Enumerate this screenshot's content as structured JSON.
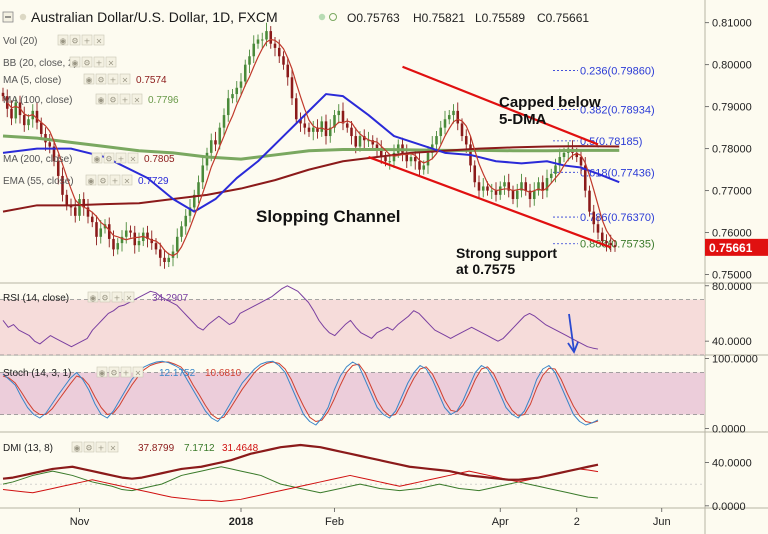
{
  "header": {
    "symbol": "Australian Dollar/U.S. Dollar, 1D, FXCM",
    "open": "O0.75763",
    "high": "H0.75821",
    "low": "L0.75589",
    "close": "C0.75661"
  },
  "indicators": [
    {
      "label": "Vol (20)",
      "value": "",
      "color": "#999999"
    },
    {
      "label": "BB (20, close, 2)",
      "value": "",
      "color": "#999999"
    },
    {
      "label": "MA (5, close)",
      "value": "0.7574",
      "color": "#8b1a1a"
    },
    {
      "label": "MA (100, close)",
      "value": "0.7796",
      "color": "#6a9a4a"
    },
    {
      "label": "MA (200, close)",
      "value": "0.7805",
      "color": "#8b1a1a"
    },
    {
      "label": "EMA (55, close)",
      "value": "0.7729",
      "color": "#2a2ad8"
    }
  ],
  "annotations": {
    "channel": "Slopping Channel",
    "capped": [
      "Capped below",
      "5-DMA"
    ],
    "support": [
      "Strong support",
      "at 0.7575"
    ]
  },
  "colors": {
    "bg": "#fdfbf0",
    "up": "#4a8a3a",
    "down": "#8b1a1a",
    "ema": "#2a2ad8",
    "ma100": "#7aa860",
    "ma200": "#8b1a1a",
    "ma5": "#c0392b",
    "channel": "#e01010",
    "fib": "#2b3bd6",
    "price_tag": "#e01010",
    "rsi": "#7a3fa0",
    "rsi_band": "#f5d6d6",
    "stoch_k": "#3a86c8",
    "stoch_d": "#d04030",
    "stoch_band": "#e9c4d6",
    "dmi_adx": "#8b1a1a",
    "dmi_plus": "#3a7a2a",
    "dmi_minus": "#d01010"
  },
  "chart_data": {
    "type": "line",
    "title": "Australian Dollar/U.S. Dollar, 1D, FXCM",
    "price_axis": {
      "ylim": [
        0.748,
        0.8135
      ],
      "ticks": [
        "0.81000",
        "0.80000",
        "0.79000",
        "0.78000",
        "0.77000",
        "0.76000",
        "0.75000"
      ],
      "tick_values": [
        0.81,
        0.8,
        0.79,
        0.78,
        0.77,
        0.76,
        0.75
      ],
      "last_price": "0.75661",
      "last_value": 0.75661
    },
    "x_axis": {
      "labels": [
        "Nov",
        "2018",
        "Feb",
        "Apr",
        "2",
        "Jun"
      ],
      "label_index": [
        18,
        56,
        78,
        117,
        135,
        155
      ],
      "range": [
        0,
        164
      ]
    },
    "candles_close": [
      0.7925,
      0.7895,
      0.7872,
      0.791,
      0.788,
      0.7856,
      0.787,
      0.789,
      0.7862,
      0.7835,
      0.7815,
      0.7805,
      0.777,
      0.7735,
      0.769,
      0.7665,
      0.766,
      0.764,
      0.768,
      0.766,
      0.7638,
      0.7625,
      0.759,
      0.761,
      0.762,
      0.7585,
      0.756,
      0.7575,
      0.759,
      0.7605,
      0.76,
      0.757,
      0.758,
      0.76,
      0.7585,
      0.7575,
      0.756,
      0.754,
      0.753,
      0.754,
      0.7555,
      0.759,
      0.7615,
      0.764,
      0.766,
      0.769,
      0.772,
      0.776,
      0.779,
      0.782,
      0.781,
      0.785,
      0.788,
      0.792,
      0.793,
      0.7945,
      0.796,
      0.8,
      0.802,
      0.805,
      0.806,
      0.806,
      0.808,
      0.805,
      0.804,
      0.802,
      0.8,
      0.797,
      0.792,
      0.787,
      0.786,
      0.785,
      0.784,
      0.785,
      0.784,
      0.7865,
      0.783,
      0.785,
      0.788,
      0.789,
      0.786,
      0.785,
      0.783,
      0.7805,
      0.783,
      0.782,
      0.782,
      0.781,
      0.78,
      0.778,
      0.777,
      0.777,
      0.779,
      0.781,
      0.779,
      0.777,
      0.778,
      0.777,
      0.775,
      0.776,
      0.779,
      0.781,
      0.783,
      0.785,
      0.787,
      0.788,
      0.789,
      0.786,
      0.783,
      0.781,
      0.776,
      0.772,
      0.77,
      0.771,
      0.77,
      0.77,
      0.769,
      0.771,
      0.772,
      0.77,
      0.768,
      0.77,
      0.772,
      0.77,
      0.768,
      0.77,
      0.772,
      0.77,
      0.773,
      0.774,
      0.776,
      0.778,
      0.779,
      0.78,
      0.779,
      0.778,
      0.776,
      0.77,
      0.765,
      0.762,
      0.76,
      0.758,
      0.7575,
      0.757,
      0.7566
    ],
    "ema55": [
      0.779,
      0.78,
      0.78,
      0.778,
      0.773,
      0.768,
      0.765,
      0.768,
      0.773,
      0.777,
      0.783,
      0.789,
      0.793,
      0.7925,
      0.788,
      0.783,
      0.781,
      0.779,
      0.7785,
      0.777,
      0.7765,
      0.777,
      0.776,
      0.7755,
      0.774,
      0.772
    ],
    "ema55_index": [
      0,
      8,
      16,
      24,
      34,
      40,
      45,
      50,
      55,
      60,
      66,
      72,
      76,
      80,
      86,
      92,
      98,
      104,
      110,
      116,
      122,
      128,
      132,
      136,
      140,
      145
    ],
    "ma100": [
      0.783,
      0.7825,
      0.7815,
      0.7805,
      0.7795,
      0.779,
      0.778,
      0.7775,
      0.7785,
      0.7795,
      0.7798,
      0.7798,
      0.7797,
      0.7796,
      0.7796,
      0.7795,
      0.7795,
      0.7796,
      0.7796
    ],
    "ma100_index": [
      0,
      8,
      16,
      24,
      32,
      40,
      48,
      56,
      64,
      72,
      80,
      88,
      96,
      104,
      112,
      120,
      128,
      136,
      145
    ],
    "ma200": [
      0.765,
      0.7665,
      0.7665,
      0.7668,
      0.767,
      0.768,
      0.769,
      0.7705,
      0.7725,
      0.775,
      0.777,
      0.778,
      0.779,
      0.7795,
      0.78,
      0.7803,
      0.7805,
      0.7806,
      0.7805
    ],
    "ma200_index": [
      0,
      8,
      16,
      24,
      32,
      40,
      48,
      56,
      64,
      72,
      80,
      88,
      96,
      104,
      112,
      120,
      128,
      136,
      145
    ],
    "channel_upper": [
      [
        94,
        0.7995
      ],
      [
        140,
        0.781
      ]
    ],
    "channel_lower": [
      [
        86,
        0.778
      ],
      [
        143,
        0.7565
      ]
    ],
    "fib_levels": [
      {
        "label": "0.236(0.79860)",
        "value": 0.7986
      },
      {
        "label": "0.382(0.78934)",
        "value": 0.78934
      },
      {
        "label": "0.5(0.78185)",
        "value": 0.78185
      },
      {
        "label": "0.618(0.77436)",
        "value": 0.77436
      },
      {
        "label": "0.786(0.76370)",
        "value": 0.7637
      },
      {
        "label": "0.886(0.75735)",
        "value": 0.75735
      }
    ],
    "rsi": {
      "label": "RSI (14, close)",
      "value_label": "34.2907",
      "ylim": [
        30,
        82
      ],
      "ticks": [
        "80.0000",
        "40.0000"
      ],
      "tick_values": [
        80,
        40
      ],
      "band": [
        30,
        70
      ],
      "values": [
        55,
        50,
        52,
        48,
        46,
        44,
        40,
        38,
        41,
        44,
        42,
        40,
        38,
        36,
        38,
        40,
        42,
        48,
        52,
        56,
        60,
        62,
        65,
        66,
        68,
        70,
        72,
        74,
        76,
        75,
        72,
        70,
        68,
        66,
        62,
        58,
        54,
        50,
        48,
        52,
        55,
        58,
        55,
        52,
        54,
        60,
        62,
        64,
        66,
        68,
        70,
        72,
        75,
        78,
        80,
        78,
        76,
        72,
        68,
        62,
        55,
        50,
        46,
        44,
        48,
        52,
        55,
        50,
        46,
        44,
        42,
        46,
        48,
        50,
        48,
        52,
        55,
        58,
        62,
        60,
        56,
        52,
        48,
        46,
        44,
        42,
        44,
        46,
        48,
        50,
        48,
        46,
        44,
        42,
        40,
        42,
        46,
        50,
        54,
        58,
        60,
        58,
        55,
        52,
        50,
        48,
        46,
        44,
        42,
        40,
        38,
        36,
        35,
        34.29
      ]
    },
    "stoch": {
      "label": "Stoch (14, 3, 1)",
      "k_label": "12.1752",
      "d_label": "10.6810",
      "ylim": [
        -5,
        105
      ],
      "ticks": [
        "100.0000",
        "0.0000"
      ],
      "tick_values": [
        100,
        0
      ],
      "band": [
        20,
        80
      ],
      "k": [
        78,
        70,
        62,
        45,
        30,
        20,
        15,
        22,
        35,
        48,
        60,
        72,
        80,
        70,
        55,
        35,
        20,
        15,
        25,
        40,
        55,
        70,
        80,
        88,
        92,
        95,
        96,
        94,
        90,
        85,
        70,
        55,
        40,
        25,
        15,
        10,
        20,
        35,
        50,
        65,
        75,
        85,
        92,
        95,
        96,
        90,
        80,
        60,
        40,
        20,
        10,
        5,
        15,
        30,
        55,
        75,
        88,
        95,
        90,
        70,
        50,
        30,
        20,
        15,
        25,
        45,
        65,
        80,
        90,
        85,
        70,
        50,
        30,
        20,
        25,
        40,
        60,
        80,
        90,
        85,
        70,
        50,
        30,
        20,
        15,
        25,
        45,
        70,
        85,
        90,
        80,
        60,
        40,
        20,
        10,
        5,
        8,
        12.1752
      ],
      "d": [
        75,
        72,
        65,
        52,
        38,
        26,
        20,
        20,
        28,
        40,
        52,
        64,
        75,
        72,
        62,
        45,
        30,
        20,
        22,
        33,
        48,
        62,
        74,
        84,
        90,
        93,
        95,
        95,
        92,
        88,
        78,
        62,
        48,
        33,
        20,
        14,
        16,
        28,
        42,
        56,
        68,
        80,
        88,
        93,
        95,
        93,
        85,
        70,
        50,
        32,
        16,
        10,
        12,
        24,
        42,
        62,
        80,
        90,
        92,
        80,
        60,
        40,
        26,
        18,
        20,
        35,
        55,
        72,
        85,
        88,
        78,
        60,
        40,
        26,
        24,
        33,
        50,
        70,
        85,
        88,
        78,
        60,
        40,
        26,
        18,
        20,
        35,
        58,
        76,
        86,
        85,
        70,
        50,
        32,
        18,
        10,
        8,
        10.681
      ]
    },
    "dmi": {
      "label": "DMI (13, 8)",
      "adx_label": "37.8799",
      "plus_label": "7.1712",
      "minus_label": "31.4648",
      "ylim": [
        -2,
        68
      ],
      "ticks": [
        "40.0000",
        "0.0000"
      ],
      "tick_values": [
        40,
        0
      ],
      "adx": [
        25,
        26,
        28,
        30,
        32,
        34,
        35,
        36,
        34,
        32,
        30,
        28,
        26,
        25,
        26,
        28,
        30,
        32,
        34,
        35,
        36,
        38,
        40,
        42,
        45,
        48,
        50,
        52,
        54,
        55,
        56,
        55,
        54,
        52,
        50,
        48,
        46,
        44,
        42,
        40,
        38,
        36,
        35,
        34,
        33,
        32,
        30,
        28,
        27,
        26,
        25,
        24,
        24,
        25,
        26,
        28,
        30,
        32,
        34,
        36,
        37.8799
      ],
      "plus": [
        20,
        22,
        25,
        28,
        30,
        32,
        30,
        28,
        25,
        22,
        20,
        18,
        15,
        14,
        16,
        18,
        20,
        24,
        28,
        30,
        32,
        34,
        36,
        34,
        32,
        30,
        28,
        24,
        20,
        18,
        16,
        14,
        12,
        14,
        16,
        18,
        20,
        18,
        16,
        15,
        14,
        15,
        16,
        18,
        20,
        18,
        16,
        15,
        14,
        16,
        18,
        20,
        22,
        20,
        18,
        16,
        14,
        12,
        10,
        8,
        7.1712
      ],
      "minus": [
        15,
        14,
        13,
        12,
        14,
        16,
        18,
        20,
        22,
        24,
        22,
        20,
        18,
        16,
        14,
        12,
        10,
        8,
        7,
        6,
        5,
        5,
        4,
        5,
        6,
        8,
        10,
        12,
        14,
        16,
        18,
        20,
        22,
        24,
        26,
        28,
        26,
        24,
        22,
        20,
        18,
        20,
        22,
        24,
        26,
        28,
        30,
        32,
        30,
        28,
        26,
        24,
        22,
        24,
        26,
        28,
        30,
        32,
        34,
        33,
        31.4648
      ]
    }
  }
}
